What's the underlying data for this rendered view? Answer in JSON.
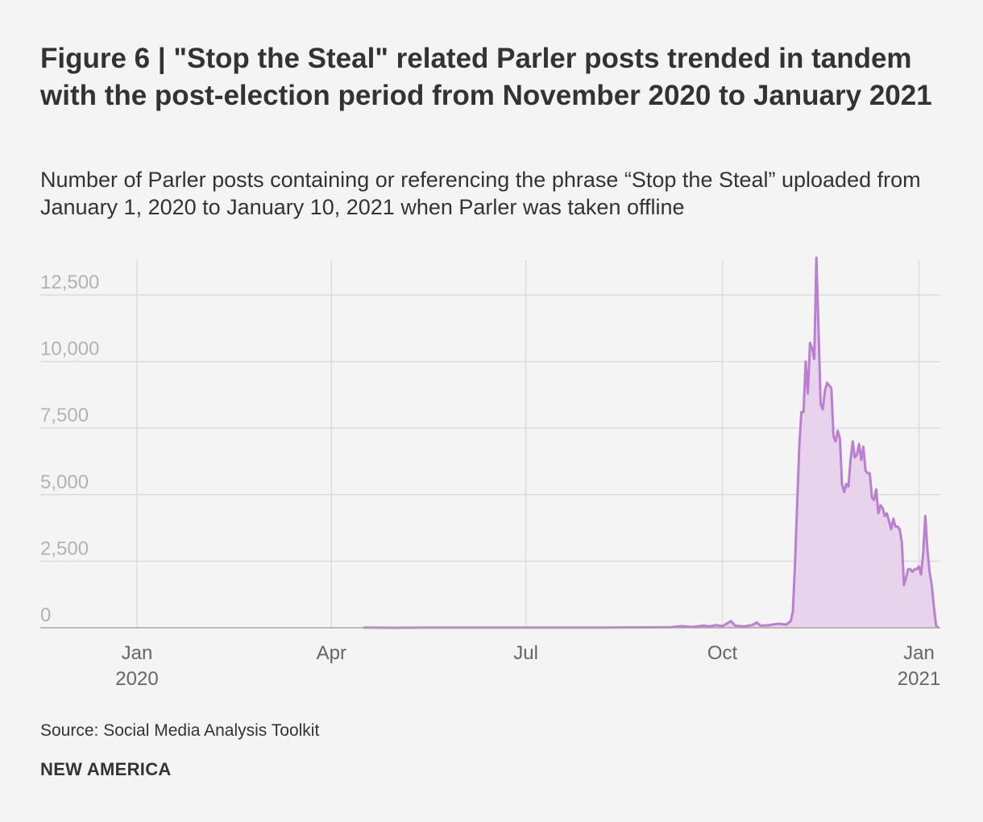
{
  "header": {
    "title": "Figure 6 | \"Stop the Steal\" related Parler posts trended in tandem with the post-election period from November 2020 to January 2021",
    "subtitle": "Number of Parler posts containing or referencing the phrase “Stop the Steal” uploaded from January 1, 2020 to January 10, 2021 when Parler was taken offline"
  },
  "footer": {
    "source": "Source: Social Media Analysis Toolkit",
    "brand": "NEW AMERICA"
  },
  "colors": {
    "line": "#bb7fd1",
    "area": "#e8d3ec",
    "grid": "#dcdcdc",
    "axis": "#a6a6a6"
  },
  "chart_data": {
    "type": "area",
    "title": "Number of Parler posts containing or referencing the phrase “Stop the Steal”",
    "xlabel": "",
    "ylabel": "",
    "series_name": "Parler posts",
    "ylim": [
      0,
      13800
    ],
    "y_ticks": [
      0,
      2500,
      5000,
      7500,
      10000,
      12500
    ],
    "y_tick_labels": [
      "0",
      "2,500",
      "5,000",
      "7,500",
      "10,000",
      "12,500"
    ],
    "x_ticks": [
      {
        "day": 0,
        "line1": "Jan",
        "line2": "2020"
      },
      {
        "day": 91,
        "line1": "Apr",
        "line2": ""
      },
      {
        "day": 182,
        "line1": "Jul",
        "line2": ""
      },
      {
        "day": 274,
        "line1": "Oct",
        "line2": ""
      },
      {
        "day": 366,
        "line1": "Jan",
        "line2": "2021"
      }
    ],
    "x_domain_days": [
      0,
      376
    ],
    "x_unit": "days since 2020-01-01",
    "points": [
      [
        106,
        5
      ],
      [
        120,
        0
      ],
      [
        140,
        10
      ],
      [
        160,
        5
      ],
      [
        180,
        10
      ],
      [
        200,
        5
      ],
      [
        220,
        10
      ],
      [
        240,
        15
      ],
      [
        250,
        20
      ],
      [
        255,
        60
      ],
      [
        260,
        30
      ],
      [
        265,
        80
      ],
      [
        268,
        50
      ],
      [
        271,
        100
      ],
      [
        274,
        60
      ],
      [
        276,
        150
      ],
      [
        278,
        250
      ],
      [
        280,
        80
      ],
      [
        284,
        50
      ],
      [
        288,
        100
      ],
      [
        290,
        200
      ],
      [
        292,
        80
      ],
      [
        296,
        100
      ],
      [
        300,
        150
      ],
      [
        304,
        120
      ],
      [
        306,
        250
      ],
      [
        307,
        600
      ],
      [
        308,
        2400
      ],
      [
        309,
        4600
      ],
      [
        310,
        6800
      ],
      [
        311,
        8100
      ],
      [
        312,
        8100
      ],
      [
        313,
        10000
      ],
      [
        314,
        8800
      ],
      [
        315,
        10700
      ],
      [
        316,
        10500
      ],
      [
        317,
        10100
      ],
      [
        318,
        13900
      ],
      [
        319,
        11200
      ],
      [
        320,
        8400
      ],
      [
        321,
        8200
      ],
      [
        322,
        8900
      ],
      [
        323,
        9200
      ],
      [
        324,
        9100
      ],
      [
        325,
        9000
      ],
      [
        326,
        7200
      ],
      [
        327,
        7000
      ],
      [
        328,
        7400
      ],
      [
        329,
        7100
      ],
      [
        330,
        5400
      ],
      [
        331,
        5100
      ],
      [
        332,
        5400
      ],
      [
        333,
        5300
      ],
      [
        334,
        6300
      ],
      [
        335,
        7000
      ],
      [
        336,
        6400
      ],
      [
        337,
        6500
      ],
      [
        338,
        6900
      ],
      [
        339,
        6300
      ],
      [
        340,
        6800
      ],
      [
        341,
        5900
      ],
      [
        342,
        5800
      ],
      [
        343,
        5800
      ],
      [
        344,
        4900
      ],
      [
        345,
        4800
      ],
      [
        346,
        5200
      ],
      [
        347,
        4300
      ],
      [
        348,
        4600
      ],
      [
        349,
        4500
      ],
      [
        350,
        4200
      ],
      [
        351,
        4300
      ],
      [
        352,
        4000
      ],
      [
        353,
        3700
      ],
      [
        354,
        4100
      ],
      [
        355,
        3800
      ],
      [
        356,
        3800
      ],
      [
        357,
        3700
      ],
      [
        358,
        3200
      ],
      [
        359,
        1600
      ],
      [
        360,
        1900
      ],
      [
        361,
        2200
      ],
      [
        362,
        2200
      ],
      [
        363,
        2100
      ],
      [
        364,
        2200
      ],
      [
        365,
        2200
      ],
      [
        366,
        2300
      ],
      [
        367,
        2000
      ],
      [
        368,
        2800
      ],
      [
        369,
        4200
      ],
      [
        370,
        2900
      ],
      [
        371,
        2100
      ],
      [
        372,
        1600
      ],
      [
        373,
        800
      ],
      [
        374,
        100
      ],
      [
        375,
        0
      ]
    ]
  }
}
